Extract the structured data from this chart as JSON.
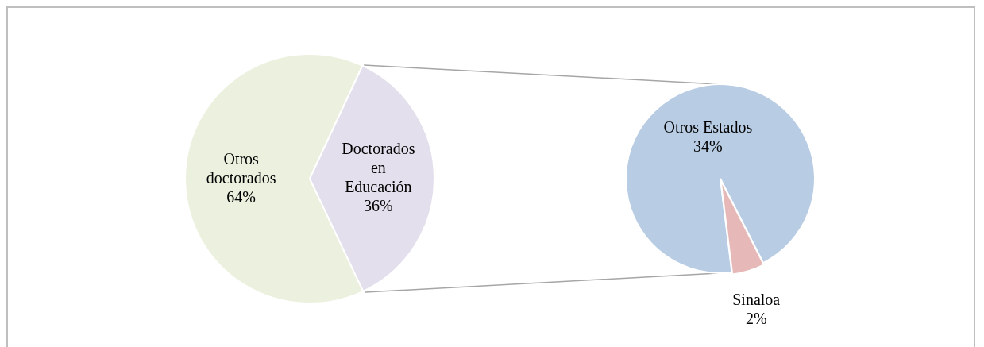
{
  "chart_data": [
    {
      "type": "pie",
      "categories": [
        "Otros doctorados",
        "Doctorados en Educación"
      ],
      "values": [
        64,
        36
      ],
      "value_labels": [
        "64%",
        "36%"
      ],
      "colors": [
        "#ebf1de",
        "#e4dfec"
      ]
    },
    {
      "type": "pie",
      "categories": [
        "Otros Estados",
        "Sinaloa"
      ],
      "values": [
        34,
        2
      ],
      "value_labels": [
        "34%",
        "2%"
      ],
      "colors": [
        "#b8cce4",
        "#e6b9b8"
      ]
    }
  ]
}
